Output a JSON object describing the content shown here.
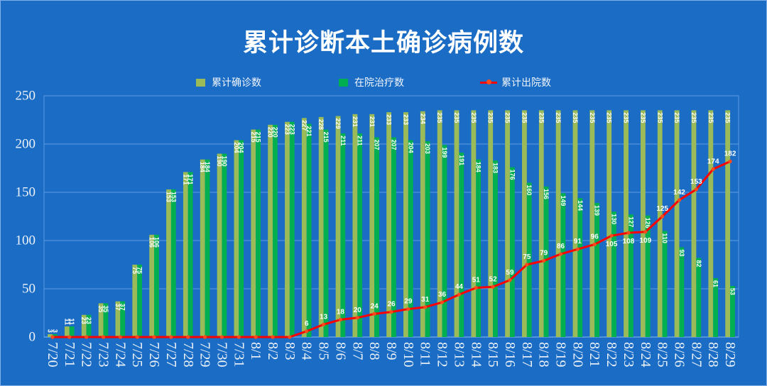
{
  "chart_data": {
    "type": "bar",
    "title": "累计诊断本土确诊病例数",
    "categories": [
      "7/20",
      "7/21",
      "7/22",
      "7/23",
      "7/24",
      "7/25",
      "7/26",
      "7/27",
      "7/28",
      "7/29",
      "7/30",
      "7/31",
      "8/1",
      "8/2",
      "8/3",
      "8/4",
      "8/5",
      "8/6",
      "8/7",
      "8/8",
      "8/9",
      "8/10",
      "8/11",
      "8/12",
      "8/13",
      "8/14",
      "8/15",
      "8/16",
      "8/17",
      "8/18",
      "8/19",
      "8/20",
      "8/21",
      "8/22",
      "8/23",
      "8/24",
      "8/25",
      "8/26",
      "8/27",
      "8/28",
      "8/29"
    ],
    "series": [
      {
        "name": "累计确诊数",
        "type": "bar",
        "color": "#9bbb59",
        "values": [
          3,
          11,
          23,
          35,
          37,
          75,
          106,
          153,
          171,
          184,
          190,
          204,
          215,
          220,
          223,
          227,
          228,
          229,
          231,
          231,
          233,
          233,
          234,
          235,
          235,
          235,
          235,
          235,
          235,
          235,
          235,
          235,
          235,
          235,
          235,
          235,
          235,
          235,
          235,
          235,
          235
        ]
      },
      {
        "name": "在院治疗数",
        "type": "bar",
        "color": "#00b050",
        "values": [
          3,
          11,
          23,
          35,
          37,
          75,
          106,
          153,
          171,
          184,
          190,
          204,
          215,
          220,
          223,
          221,
          215,
          211,
          211,
          207,
          207,
          204,
          203,
          199,
          191,
          184,
          183,
          176,
          160,
          156,
          149,
          144,
          139,
          130,
          127,
          126,
          110,
          93,
          82,
          61,
          53
        ]
      },
      {
        "name": "累计出院数",
        "type": "line",
        "color": "#ff0000",
        "values": [
          0,
          0,
          0,
          0,
          0,
          0,
          0,
          0,
          0,
          0,
          0,
          0,
          0,
          0,
          0,
          6,
          13,
          18,
          20,
          24,
          26,
          29,
          31,
          36,
          44,
          51,
          52,
          59,
          75,
          79,
          86,
          91,
          96,
          105,
          108,
          109,
          125,
          142,
          153,
          174,
          182
        ]
      }
    ],
    "ylim": [
      0,
      250
    ],
    "yticks": [
      0,
      50,
      100,
      150,
      200,
      250
    ],
    "grid": true,
    "legend": "top-center"
  }
}
